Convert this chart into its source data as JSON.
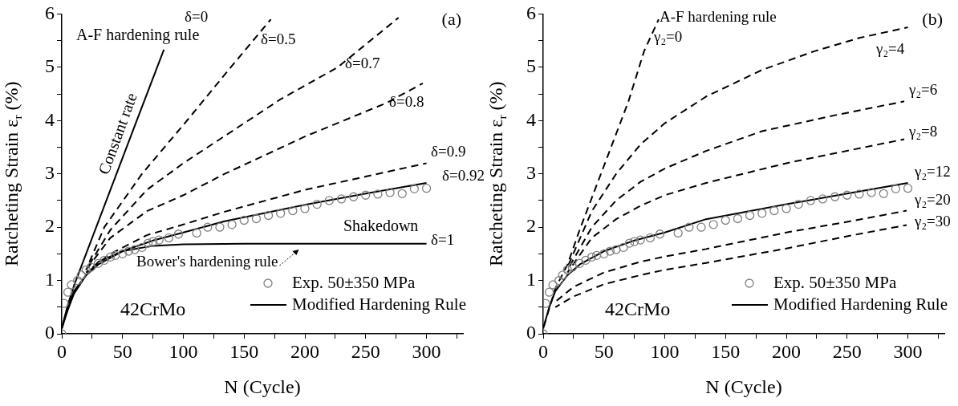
{
  "chart_data": [
    {
      "type": "line",
      "xlabel": "N (Cycle)",
      "ylabel": "Ratcheting Strain ε$_{r}$ (%)",
      "xlim": [
        0,
        330
      ],
      "ylim": [
        0,
        6
      ],
      "xticks": [
        0,
        {
          "value": 25,
          "label": null
        },
        50,
        {
          "value": 75,
          "label": null
        },
        100,
        {
          "value": 125,
          "label": null
        },
        150,
        {
          "value": 175,
          "label": null
        },
        200,
        {
          "value": 225,
          "label": null
        },
        250,
        {
          "value": 275,
          "label": null
        },
        300,
        {
          "value": 325,
          "label": null
        }
      ],
      "yticks": [
        0,
        {
          "value": 0.5,
          "label": null
        },
        1,
        {
          "value": 1.5,
          "label": null
        },
        2,
        {
          "value": 2.5,
          "label": null
        },
        3,
        {
          "value": 3.5,
          "label": null
        },
        4,
        {
          "value": 4.5,
          "label": null
        },
        5,
        {
          "value": 5.5,
          "label": null
        },
        6
      ],
      "legend": "bottom right",
      "series": [
        {
          "type": "scatter",
          "name": "Exp. 50±350 MPa",
          "color": "#808080",
          "marker": "circle",
          "x": [
            0,
            2,
            5,
            8,
            13,
            16,
            20,
            24,
            30,
            35,
            40,
            44,
            50,
            55,
            60,
            66,
            71,
            75,
            80,
            88,
            96,
            111,
            120,
            130,
            140,
            150,
            160,
            170,
            180,
            190,
            200,
            210,
            220,
            230,
            240,
            250,
            260,
            270,
            280,
            290,
            300
          ],
          "values": [
            0,
            0.57,
            0.78,
            0.92,
            1.0,
            1.1,
            1.2,
            1.25,
            1.32,
            1.38,
            1.44,
            1.47,
            1.5,
            1.55,
            1.58,
            1.62,
            1.7,
            1.73,
            1.76,
            1.8,
            1.87,
            1.89,
            2.0,
            2.0,
            2.05,
            2.13,
            2.16,
            2.22,
            2.26,
            2.31,
            2.35,
            2.43,
            2.5,
            2.53,
            2.57,
            2.6,
            2.62,
            2.65,
            2.63,
            2.72,
            2.73
          ]
        },
        {
          "type": "line",
          "name": "Modified Hardening Rule",
          "color": "#000000",
          "line_style": "solid",
          "marker": "none",
          "x": [
            0,
            5,
            10,
            20,
            30,
            50,
            75,
            100,
            134,
            200,
            250,
            300
          ],
          "values": [
            0.1,
            0.5,
            0.8,
            1.1,
            1.3,
            1.55,
            1.75,
            1.9,
            2.11,
            2.42,
            2.63,
            2.83
          ]
        },
        {
          "type": "line",
          "color": "#000000",
          "line_style": "solid",
          "marker": "none",
          "x": [
            0,
            5,
            10,
            25,
            40,
            60,
            84
          ],
          "values": [
            0.1,
            0.55,
            0.9,
            1.8,
            2.7,
            3.9,
            5.33
          ]
        },
        {
          "type": "line",
          "color": "#000000",
          "line_style": "solid",
          "marker": "none",
          "x": [
            0,
            5,
            10,
            20,
            30,
            50,
            75,
            100,
            150,
            300
          ],
          "values": [
            0.1,
            0.45,
            0.75,
            1.1,
            1.35,
            1.55,
            1.65,
            1.68,
            1.69,
            1.69
          ]
        },
        {
          "type": "line",
          "color": "#000000",
          "line_style": "dashed",
          "marker": "none",
          "x": [
            20,
            35,
            66,
            103,
            139,
            172
          ],
          "values": [
            1.2,
            2.0,
            3.0,
            4.0,
            5.0,
            5.9
          ]
        },
        {
          "type": "line",
          "color": "#000000",
          "line_style": "dashed",
          "marker": "none",
          "x": [
            20,
            40,
            70,
            100,
            140,
            180,
            227,
            277
          ],
          "values": [
            1.2,
            1.95,
            2.7,
            3.2,
            3.8,
            4.4,
            5.0,
            5.93
          ]
        },
        {
          "type": "line",
          "color": "#000000",
          "line_style": "dashed",
          "marker": "none",
          "x": [
            20,
            40,
            70,
            100,
            134,
            200,
            267,
            297
          ],
          "values": [
            1.2,
            1.8,
            2.3,
            2.6,
            3.0,
            3.7,
            4.33,
            4.7
          ]
        },
        {
          "type": "line",
          "color": "#000000",
          "line_style": "dashed",
          "marker": "none",
          "x": [
            20,
            40,
            70,
            100,
            134,
            200,
            250,
            300
          ],
          "values": [
            1.15,
            1.5,
            1.85,
            2.05,
            2.29,
            2.7,
            2.95,
            3.2
          ]
        }
      ],
      "annotations": [
        "δ=0",
        "A-F hardening rule",
        "Constant rate",
        "δ=0.5",
        "δ=0.7",
        "δ=0.8",
        "δ=0.9",
        "δ=0.92",
        "Shakedown",
        "δ=1",
        "Bower's hardening rule",
        "42CrMo",
        "(a)"
      ]
    },
    {
      "type": "line",
      "xlabel": "N (Cycle)",
      "ylabel": "Ratcheting Strain ε$_{r}$ (%)",
      "xlim": [
        0,
        330
      ],
      "ylim": [
        0,
        6
      ],
      "xticks": [
        0,
        {
          "value": 25,
          "label": null
        },
        50,
        {
          "value": 75,
          "label": null
        },
        100,
        {
          "value": 125,
          "label": null
        },
        150,
        {
          "value": 175,
          "label": null
        },
        200,
        {
          "value": 225,
          "label": null
        },
        250,
        {
          "value": 275,
          "label": null
        },
        300,
        {
          "value": 325,
          "label": null
        }
      ],
      "yticks": [
        0,
        {
          "value": 0.5,
          "label": null
        },
        1,
        {
          "value": 1.5,
          "label": null
        },
        2,
        {
          "value": 2.5,
          "label": null
        },
        3,
        {
          "value": 3.5,
          "label": null
        },
        4,
        {
          "value": 4.5,
          "label": null
        },
        5,
        {
          "value": 5.5,
          "label": null
        },
        6
      ],
      "legend": "bottom right",
      "series": [
        {
          "type": "scatter",
          "name": "Exp. 50±350 MPa",
          "color": "#808080",
          "marker": "circle",
          "x": [
            0,
            2,
            5,
            8,
            13,
            16,
            20,
            24,
            30,
            35,
            40,
            44,
            50,
            55,
            60,
            66,
            71,
            75,
            80,
            88,
            96,
            111,
            120,
            130,
            140,
            150,
            160,
            170,
            180,
            190,
            200,
            210,
            220,
            230,
            240,
            250,
            260,
            270,
            280,
            290,
            300
          ],
          "values": [
            0,
            0.57,
            0.78,
            0.92,
            1.0,
            1.1,
            1.2,
            1.25,
            1.32,
            1.38,
            1.44,
            1.47,
            1.5,
            1.55,
            1.58,
            1.62,
            1.7,
            1.73,
            1.76,
            1.8,
            1.87,
            1.89,
            2.0,
            2.0,
            2.05,
            2.13,
            2.16,
            2.22,
            2.26,
            2.31,
            2.35,
            2.43,
            2.5,
            2.53,
            2.57,
            2.6,
            2.62,
            2.65,
            2.63,
            2.72,
            2.73
          ]
        },
        {
          "type": "line",
          "name": "Modified Hardening Rule",
          "color": "#000000",
          "line_style": "solid",
          "marker": "none",
          "x": [
            0,
            5,
            10,
            20,
            30,
            50,
            75,
            100,
            134,
            200,
            250,
            300
          ],
          "values": [
            0.1,
            0.5,
            0.8,
            1.1,
            1.3,
            1.55,
            1.75,
            1.9,
            2.15,
            2.43,
            2.63,
            2.83
          ]
        },
        {
          "type": "line",
          "color": "#000000",
          "line_style": "dashed",
          "marker": "none",
          "x": [
            0,
            10,
            20,
            30,
            40,
            55,
            70,
            83,
            95
          ],
          "values": [
            0.1,
            0.85,
            1.3,
            1.95,
            2.55,
            3.45,
            4.35,
            5.3,
            5.9
          ]
        },
        {
          "type": "line",
          "color": "#000000",
          "line_style": "dashed",
          "marker": "none",
          "x": [
            20,
            40,
            60,
            80,
            100,
            134,
            180,
            223,
            260,
            300
          ],
          "values": [
            1.25,
            2.3,
            3.0,
            3.55,
            3.95,
            4.45,
            4.95,
            5.3,
            5.55,
            5.75
          ]
        },
        {
          "type": "line",
          "color": "#000000",
          "line_style": "dashed",
          "marker": "none",
          "x": [
            20,
            40,
            60,
            80,
            100,
            134,
            180,
            240,
            297
          ],
          "values": [
            1.2,
            2.0,
            2.5,
            2.85,
            3.1,
            3.43,
            3.8,
            4.1,
            4.36
          ]
        },
        {
          "type": "line",
          "color": "#000000",
          "line_style": "dashed",
          "marker": "none",
          "x": [
            20,
            40,
            60,
            80,
            100,
            134,
            200,
            297
          ],
          "values": [
            1.15,
            1.8,
            2.15,
            2.4,
            2.6,
            2.83,
            3.2,
            3.65
          ]
        },
        {
          "type": "line",
          "color": "#000000",
          "line_style": "dashed",
          "marker": "none",
          "x": [
            10,
            25,
            50,
            80,
            100,
            134,
            200,
            250,
            299
          ],
          "values": [
            0.6,
            0.88,
            1.15,
            1.35,
            1.45,
            1.59,
            1.9,
            2.1,
            2.31
          ]
        },
        {
          "type": "line",
          "color": "#000000",
          "line_style": "dashed",
          "marker": "none",
          "x": [
            10,
            25,
            50,
            80,
            100,
            134,
            200,
            250,
            299
          ],
          "values": [
            0.5,
            0.7,
            0.93,
            1.1,
            1.2,
            1.33,
            1.6,
            1.83,
            2.04
          ]
        }
      ],
      "annotations": [
        "A-F hardening rule",
        "γ₂=0",
        "γ₂=4",
        "γ₂=6",
        "γ₂=8",
        "γ₂=12",
        "γ₂=20",
        "γ₂=30",
        "42CrMo",
        "(b)"
      ]
    }
  ]
}
